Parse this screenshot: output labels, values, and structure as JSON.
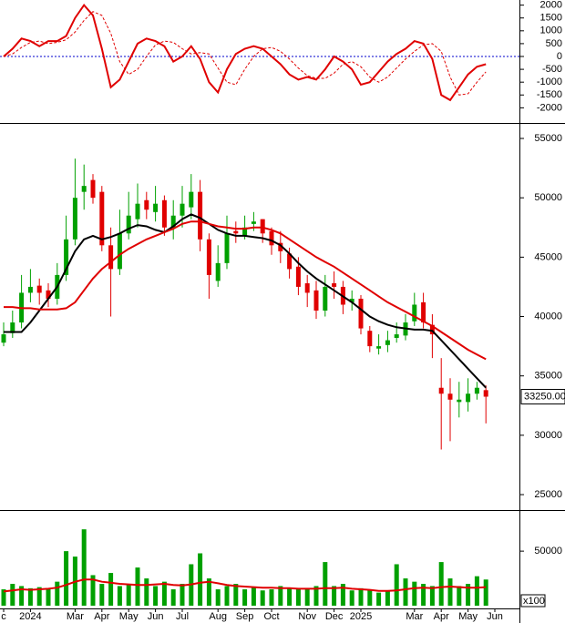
{
  "chart_data": [
    {
      "type": "line",
      "ylim": [
        -2590,
        2200
      ],
      "yticks": [
        2000,
        1500,
        1000,
        500,
        0,
        -500,
        -1000,
        -1500,
        -2000
      ],
      "zero_line_color": "#0000cc",
      "series": [
        {
          "color": "#e00000",
          "style": "solid",
          "values": [
            0,
            300,
            700,
            600,
            400,
            600,
            600,
            800,
            1500,
            2000,
            1600,
            300,
            -1200,
            -900,
            -200,
            500,
            700,
            600,
            400,
            -200,
            0,
            400,
            -100,
            -1000,
            -1400,
            -500,
            100,
            300,
            400,
            300,
            0,
            -300,
            -700,
            -900,
            -800,
            -900,
            -500,
            0,
            -200,
            -500,
            -1100,
            -1000,
            -600,
            -200,
            100,
            300,
            600,
            500,
            -100,
            -1500,
            -1700,
            -1200,
            -700,
            -400,
            -300,
            null
          ]
        },
        {
          "color": "#e00000",
          "style": "dashed",
          "values": [
            0,
            100,
            350,
            550,
            600,
            500,
            550,
            650,
            950,
            1400,
            1750,
            1600,
            900,
            -200,
            -700,
            -500,
            0,
            450,
            600,
            550,
            300,
            100,
            150,
            100,
            -450,
            -1000,
            -1100,
            -500,
            0,
            300,
            350,
            200,
            -100,
            -450,
            -750,
            -850,
            -850,
            -650,
            -300,
            -200,
            -400,
            -800,
            -1000,
            -800,
            -450,
            -100,
            200,
            450,
            500,
            200,
            -800,
            -1500,
            -1450,
            -1000,
            -600,
            null
          ]
        }
      ]
    },
    {
      "type": "candlestick",
      "ylim": [
        23700,
        56150
      ],
      "yticks": [
        55000,
        50000,
        45000,
        40000,
        35000,
        30000,
        25000
      ],
      "up_color": "#00a000",
      "down_color": "#e00000",
      "open": [
        37800,
        38600,
        39500,
        42000,
        42600,
        42200,
        41500,
        43500,
        46500,
        50500,
        51500,
        50500,
        46000,
        44000,
        47000,
        48200,
        49800,
        48800,
        49800,
        47500,
        48500,
        49200,
        50500,
        46500,
        43000,
        44500,
        47200,
        46800,
        47800,
        48200,
        47200,
        46200,
        45300,
        44200,
        42800,
        42200,
        40500,
        42800,
        42500,
        41200,
        41500,
        38800,
        37300,
        37600,
        38200,
        38400,
        39600,
        41200,
        39300,
        34000,
        33500,
        32800,
        32800,
        33500,
        33800,
        null
      ],
      "high": [
        39500,
        40500,
        43500,
        44000,
        43200,
        42800,
        44500,
        48500,
        53300,
        52800,
        52000,
        51000,
        47500,
        49000,
        50500,
        51200,
        50500,
        51000,
        50200,
        49800,
        51000,
        52000,
        51500,
        47000,
        46000,
        48500,
        48000,
        48500,
        48800,
        48200,
        47500,
        47200,
        45800,
        45000,
        43500,
        43000,
        43500,
        43800,
        43000,
        42200,
        41800,
        39200,
        38500,
        38800,
        39500,
        40200,
        42000,
        42000,
        40200,
        36500,
        34800,
        34500,
        34800,
        34500,
        34200,
        null
      ],
      "low": [
        37500,
        38200,
        39000,
        41200,
        41000,
        40800,
        41000,
        43000,
        46000,
        49000,
        49500,
        45500,
        40000,
        43500,
        46500,
        47500,
        48200,
        48000,
        46800,
        46500,
        47500,
        48200,
        45500,
        41500,
        42500,
        44000,
        46200,
        46500,
        47200,
        46200,
        45200,
        44500,
        43200,
        41800,
        40800,
        39800,
        40000,
        41500,
        40200,
        40500,
        38500,
        37000,
        36800,
        37000,
        37800,
        38000,
        39200,
        39000,
        36500,
        28800,
        29500,
        31500,
        32000,
        33000,
        31000,
        null
      ],
      "close": [
        38500,
        39500,
        42000,
        42500,
        42000,
        41500,
        43500,
        46500,
        50000,
        51000,
        50000,
        46000,
        44000,
        47000,
        48500,
        49500,
        49000,
        49500,
        47500,
        48500,
        49500,
        50500,
        46500,
        43500,
        44500,
        47000,
        47000,
        47500,
        48000,
        47000,
        46000,
        45500,
        44000,
        42500,
        42000,
        40500,
        42500,
        42500,
        41000,
        41500,
        39000,
        37500,
        37500,
        38000,
        38500,
        39500,
        41000,
        39500,
        38500,
        33500,
        33000,
        33000,
        33500,
        34000,
        33250,
        null
      ],
      "series": [
        {
          "color": "#000000",
          "values": [
            38700,
            38700,
            38700,
            39500,
            40500,
            41500,
            42500,
            44000,
            45500,
            46500,
            46800,
            46500,
            46700,
            47000,
            47400,
            47700,
            47600,
            47300,
            47100,
            47600,
            48200,
            48600,
            48300,
            47800,
            47300,
            47000,
            46800,
            46800,
            46700,
            46600,
            46400,
            46000,
            45300,
            44500,
            43800,
            43200,
            42700,
            42200,
            41700,
            41200,
            40600,
            40000,
            39600,
            39300,
            39100,
            39000,
            38900,
            38900,
            38800,
            38000,
            37200,
            36400,
            35600,
            34800,
            34000,
            null
          ]
        },
        {
          "color": "#e00000",
          "values": [
            40800,
            40800,
            40700,
            40700,
            40600,
            40600,
            40600,
            40700,
            41200,
            42200,
            43200,
            44000,
            44600,
            45200,
            45700,
            46100,
            46500,
            46800,
            47100,
            47400,
            47800,
            48000,
            48000,
            47800,
            47600,
            47500,
            47400,
            47400,
            47500,
            47500,
            47300,
            47000,
            46500,
            46000,
            45500,
            45000,
            44600,
            44200,
            43700,
            43200,
            42700,
            42200,
            41700,
            41200,
            40800,
            40400,
            40000,
            39600,
            39200,
            38700,
            38200,
            37700,
            37200,
            36800,
            36400,
            null
          ]
        }
      ],
      "last_price": {
        "value": 33250,
        "label": "33250.00"
      }
    },
    {
      "type": "bar",
      "ylim": [
        0,
        86000
      ],
      "yticks": [
        50000
      ],
      "unit_label": "x100",
      "color": "#00a000",
      "categories": [
        "c",
        null,
        null,
        "2024",
        null,
        null,
        null,
        null,
        "Mar",
        null,
        null,
        "Apr",
        null,
        null,
        "May",
        null,
        null,
        "Jun",
        null,
        null,
        "Jul",
        null,
        null,
        null,
        "Aug",
        null,
        null,
        "Sep",
        null,
        null,
        "Oct",
        null,
        null,
        null,
        "Nov",
        null,
        null,
        "Dec",
        null,
        null,
        "2025",
        null,
        null,
        null,
        null,
        null,
        "Mar",
        null,
        null,
        "Apr",
        null,
        null,
        "May",
        null,
        null,
        "Jun"
      ],
      "values": [
        15000,
        20000,
        18000,
        16000,
        17000,
        16000,
        22000,
        50000,
        45000,
        70000,
        28000,
        20000,
        30000,
        18000,
        20000,
        35000,
        25000,
        18000,
        22000,
        15000,
        20000,
        38000,
        48000,
        25000,
        15000,
        18000,
        20000,
        15000,
        17000,
        14000,
        15000,
        18000,
        16000,
        15000,
        15000,
        18000,
        40000,
        18000,
        20000,
        14000,
        16000,
        15000,
        12000,
        14000,
        38000,
        25000,
        22000,
        20000,
        18000,
        40000,
        25000,
        18000,
        20000,
        27000,
        24000,
        null
      ],
      "series": [
        {
          "color": "#e00000",
          "values": [
            13000,
            14000,
            15000,
            14500,
            15000,
            15500,
            16500,
            19000,
            22000,
            24000,
            24000,
            22000,
            21000,
            20000,
            19500,
            19000,
            19000,
            19500,
            20000,
            19000,
            18500,
            19500,
            21000,
            22000,
            20500,
            19000,
            18000,
            17500,
            17000,
            16500,
            16500,
            16000,
            16000,
            15500,
            15500,
            15500,
            16000,
            16000,
            16500,
            15500,
            15000,
            14500,
            13500,
            13500,
            14000,
            15000,
            16000,
            16500,
            16000,
            17000,
            17500,
            17000,
            16500,
            16500,
            17000,
            null
          ]
        }
      ]
    }
  ]
}
